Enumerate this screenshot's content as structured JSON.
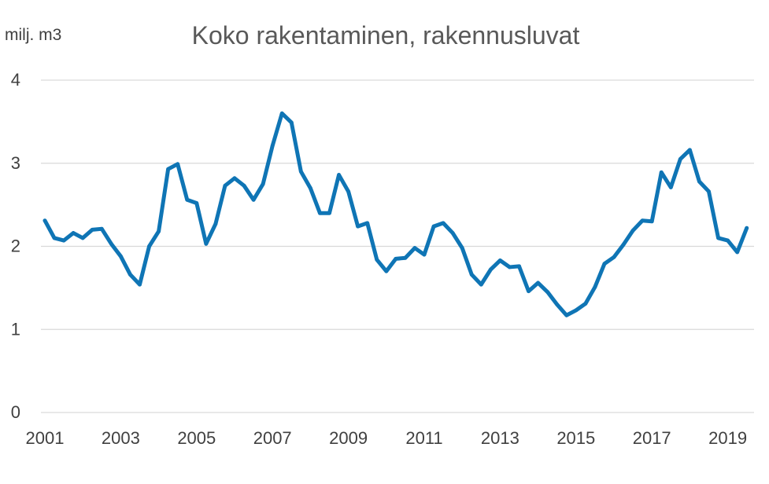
{
  "chart_data": {
    "type": "line",
    "title": "Koko rakentaminen, rakennusluvat",
    "ylabel": "milj. m3",
    "xlabel": "",
    "ylim": [
      0,
      4
    ],
    "yticks": [
      "0",
      "1",
      "2",
      "3",
      "4"
    ],
    "xticks": [
      "2001",
      "2003",
      "2005",
      "2007",
      "2009",
      "2011",
      "2013",
      "2015",
      "2017",
      "2019"
    ],
    "x_start": 2001,
    "x_step": 0.25,
    "grid": true,
    "color": "#0F75B5",
    "series": [
      {
        "name": "",
        "values": [
          2.31,
          2.1,
          2.07,
          2.16,
          2.1,
          2.2,
          2.21,
          2.03,
          1.88,
          1.66,
          1.54,
          2.0,
          2.18,
          2.93,
          2.99,
          2.56,
          2.52,
          2.03,
          2.27,
          2.73,
          2.82,
          2.73,
          2.56,
          2.75,
          3.21,
          3.6,
          3.49,
          2.9,
          2.7,
          2.4,
          2.4,
          2.86,
          2.66,
          2.24,
          2.28,
          1.84,
          1.7,
          1.85,
          1.86,
          1.98,
          1.9,
          2.24,
          2.28,
          2.16,
          1.98,
          1.66,
          1.54,
          1.72,
          1.83,
          1.75,
          1.76,
          1.46,
          1.56,
          1.45,
          1.3,
          1.17,
          1.23,
          1.31,
          1.51,
          1.79,
          1.87,
          2.02,
          2.19,
          2.31,
          2.3,
          2.89,
          2.71,
          3.05,
          3.16,
          2.78,
          2.66,
          2.1,
          2.07,
          1.93,
          2.22
        ]
      }
    ]
  }
}
